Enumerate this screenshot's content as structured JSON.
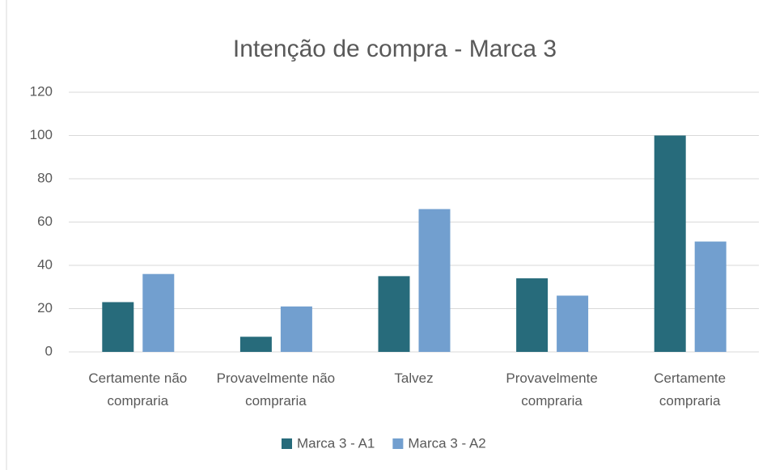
{
  "chart_data": {
    "type": "bar",
    "title": "Intenção de compra - Marca 3",
    "categories": [
      "Certamente não compraria",
      "Provavelmente não compraria",
      "Talvez",
      "Provavelmente compraria",
      "Certamente compraria"
    ],
    "series": [
      {
        "name": "Marca 3 - A1",
        "color": "#276b7b",
        "values": [
          23,
          7,
          35,
          34,
          100
        ]
      },
      {
        "name": "Marca 3 - A2",
        "color": "#729fcf",
        "values": [
          36,
          21,
          66,
          26,
          51
        ]
      }
    ],
    "ylim": [
      0,
      120
    ],
    "yticks": [
      0,
      20,
      40,
      60,
      80,
      100,
      120
    ],
    "grid": true,
    "legend": "bottom"
  }
}
